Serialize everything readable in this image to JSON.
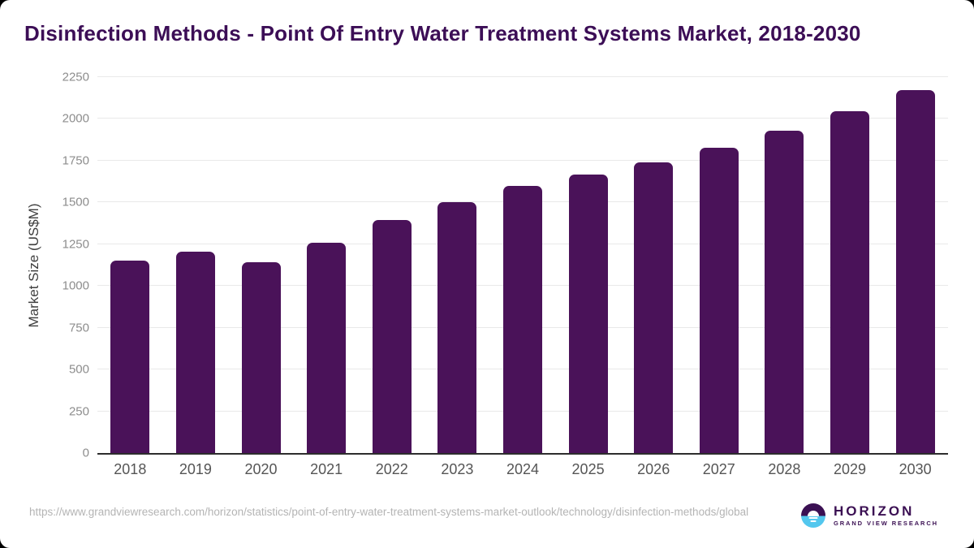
{
  "header": {
    "title": "Disinfection Methods - Point Of Entry Water Treatment Systems Market, 2018-2030"
  },
  "chart_data": {
    "type": "bar",
    "title": "Disinfection Methods - Point Of Entry Water Treatment Systems Market, 2018-2030",
    "categories": [
      "2018",
      "2019",
      "2020",
      "2021",
      "2022",
      "2023",
      "2024",
      "2025",
      "2026",
      "2027",
      "2028",
      "2029",
      "2030"
    ],
    "values": [
      1150,
      1205,
      1140,
      1260,
      1395,
      1500,
      1600,
      1665,
      1740,
      1825,
      1930,
      2045,
      2170
    ],
    "xlabel": "",
    "ylabel": "Market Size (US$M)",
    "ylim": [
      0,
      2250
    ],
    "yticks": [
      0,
      250,
      500,
      750,
      1000,
      1250,
      1500,
      1750,
      2000,
      2250
    ],
    "grid": true,
    "legend": false,
    "bar_color": "#4a1259"
  },
  "footer": {
    "source_url": "https://www.grandviewresearch.com/horizon/statistics/point-of-entry-water-treatment-systems-market-outlook/technology/disinfection-methods/global",
    "logo": {
      "brand": "HORIZON",
      "sub_brand": "GRAND VIEW RESEARCH"
    }
  },
  "colors": {
    "bar": "#4a1259",
    "title": "#3c0e56",
    "logo_purple": "#3b1053",
    "logo_blue": "#53c7ee",
    "gridline": "#e9e9e9",
    "axis_line": "#2d2d2d",
    "y_tick_text": "#8d8d8d",
    "x_tick_text": "#555555",
    "source_text": "#b4b4b4",
    "background": "#ffffff"
  }
}
